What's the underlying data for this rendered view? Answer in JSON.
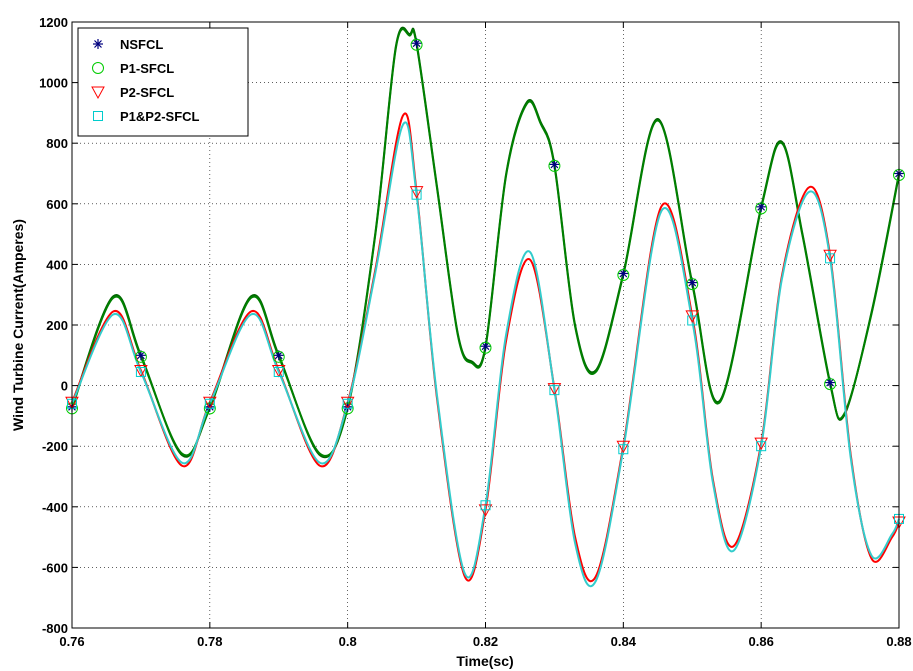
{
  "chart_data": {
    "type": "line",
    "title": "",
    "xlabel": "Time(sc)",
    "ylabel": "Wind Turbine Current(Amperes)",
    "xlim": [
      0.76,
      0.88
    ],
    "ylim": [
      -800,
      1200
    ],
    "xticks": [
      0.76,
      0.78,
      0.8,
      0.82,
      0.84,
      0.86,
      0.88
    ],
    "xtick_labels": [
      "0.76",
      "0.78",
      "0.8",
      "0.82",
      "0.84",
      "0.86",
      "0.88"
    ],
    "yticks": [
      -800,
      -600,
      -400,
      -200,
      0,
      200,
      400,
      600,
      800,
      1000,
      1200
    ],
    "ytick_labels": [
      "-800",
      "-600",
      "-400",
      "-200",
      "0",
      "200",
      "400",
      "600",
      "800",
      "1000",
      "1200"
    ],
    "grid": "dotted",
    "legend_position": "top-left",
    "series": [
      {
        "name": "NSFCL",
        "color": "#00007f",
        "line_color": "#006400",
        "marker": "asterisk",
        "x": [
          0.76,
          0.766,
          0.77,
          0.776,
          0.78,
          0.786,
          0.79,
          0.796,
          0.8,
          0.804,
          0.807,
          0.809,
          0.81,
          0.813,
          0.816,
          0.818,
          0.82,
          0.823,
          0.826,
          0.828,
          0.83,
          0.833,
          0.836,
          0.84,
          0.845,
          0.85,
          0.854,
          0.86,
          0.863,
          0.866,
          0.87,
          0.872,
          0.876,
          0.88
        ],
        "y": [
          -70,
          295,
          100,
          -230,
          -70,
          295,
          100,
          -230,
          -70,
          500,
          1120,
          1160,
          1130,
          650,
          170,
          80,
          130,
          700,
          935,
          870,
          730,
          200,
          50,
          370,
          880,
          340,
          -50,
          590,
          805,
          500,
          10,
          -100,
          240,
          700
        ],
        "marker_x": [
          0.76,
          0.77,
          0.78,
          0.79,
          0.8,
          0.81,
          0.82,
          0.83,
          0.84,
          0.85,
          0.86,
          0.87,
          0.88
        ],
        "marker_y": [
          -70,
          100,
          -70,
          100,
          -70,
          1130,
          130,
          730,
          370,
          340,
          590,
          10,
          700
        ]
      },
      {
        "name": "P1-SFCL",
        "color": "#00cc00",
        "line_color": "#008000",
        "marker": "circle",
        "x": [
          0.76,
          0.766,
          0.77,
          0.776,
          0.78,
          0.786,
          0.79,
          0.796,
          0.8,
          0.804,
          0.807,
          0.809,
          0.81,
          0.813,
          0.816,
          0.818,
          0.82,
          0.823,
          0.826,
          0.828,
          0.83,
          0.833,
          0.836,
          0.84,
          0.845,
          0.85,
          0.854,
          0.86,
          0.863,
          0.866,
          0.87,
          0.872,
          0.876,
          0.88
        ],
        "y": [
          -75,
          290,
          95,
          -225,
          -75,
          290,
          95,
          -225,
          -75,
          495,
          1115,
          1155,
          1125,
          645,
          165,
          75,
          125,
          695,
          930,
          865,
          725,
          195,
          45,
          365,
          875,
          335,
          -55,
          585,
          800,
          495,
          5,
          -95,
          235,
          695
        ],
        "marker_x": [
          0.76,
          0.77,
          0.78,
          0.79,
          0.8,
          0.81,
          0.82,
          0.83,
          0.84,
          0.85,
          0.86,
          0.87,
          0.88
        ],
        "marker_y": [
          -75,
          95,
          -75,
          95,
          -75,
          1125,
          125,
          725,
          365,
          335,
          585,
          5,
          695
        ]
      },
      {
        "name": "P2-SFCL",
        "color": "#ff0000",
        "line_color": "#ff0000",
        "marker": "triangle-down",
        "x": [
          0.76,
          0.766,
          0.77,
          0.776,
          0.78,
          0.786,
          0.79,
          0.796,
          0.8,
          0.804,
          0.808,
          0.81,
          0.813,
          0.817,
          0.82,
          0.823,
          0.8265,
          0.83,
          0.833,
          0.836,
          0.84,
          0.8455,
          0.85,
          0.853,
          0.856,
          0.86,
          0.863,
          0.867,
          0.87,
          0.873,
          0.876,
          0.879,
          0.88
        ],
        "y": [
          -55,
          245,
          50,
          -265,
          -55,
          245,
          50,
          -265,
          -55,
          380,
          890,
          640,
          -50,
          -630,
          -410,
          150,
          415,
          -10,
          -500,
          -630,
          -200,
          590,
          230,
          -310,
          -530,
          -190,
          360,
          655,
          430,
          -230,
          -570,
          -500,
          -450
        ],
        "marker_x": [
          0.76,
          0.77,
          0.78,
          0.79,
          0.8,
          0.81,
          0.82,
          0.83,
          0.84,
          0.85,
          0.86,
          0.87,
          0.88
        ],
        "marker_y": [
          -55,
          50,
          -55,
          50,
          -55,
          640,
          -410,
          -10,
          -200,
          230,
          -190,
          430,
          -450
        ]
      },
      {
        "name": "P1&P2-SFCL",
        "color": "#00cccc",
        "line_color": "#33cccc",
        "marker": "square",
        "x": [
          0.76,
          0.766,
          0.77,
          0.776,
          0.78,
          0.786,
          0.79,
          0.796,
          0.8,
          0.804,
          0.808,
          0.81,
          0.813,
          0.817,
          0.82,
          0.823,
          0.8265,
          0.83,
          0.833,
          0.836,
          0.84,
          0.8455,
          0.85,
          0.853,
          0.856,
          0.86,
          0.863,
          0.867,
          0.87,
          0.873,
          0.876,
          0.879,
          0.88
        ],
        "y": [
          -60,
          235,
          45,
          -255,
          -60,
          235,
          45,
          -255,
          -60,
          370,
          860,
          630,
          -40,
          -620,
          -395,
          170,
          440,
          -15,
          -520,
          -645,
          -210,
          575,
          215,
          -320,
          -545,
          -200,
          350,
          640,
          420,
          -240,
          -560,
          -490,
          -440
        ],
        "marker_x": [
          0.76,
          0.77,
          0.78,
          0.79,
          0.8,
          0.81,
          0.82,
          0.83,
          0.84,
          0.85,
          0.86,
          0.87,
          0.88
        ],
        "marker_y": [
          -60,
          45,
          -60,
          45,
          -60,
          630,
          -395,
          -15,
          -210,
          215,
          -200,
          420,
          -440
        ]
      }
    ]
  }
}
